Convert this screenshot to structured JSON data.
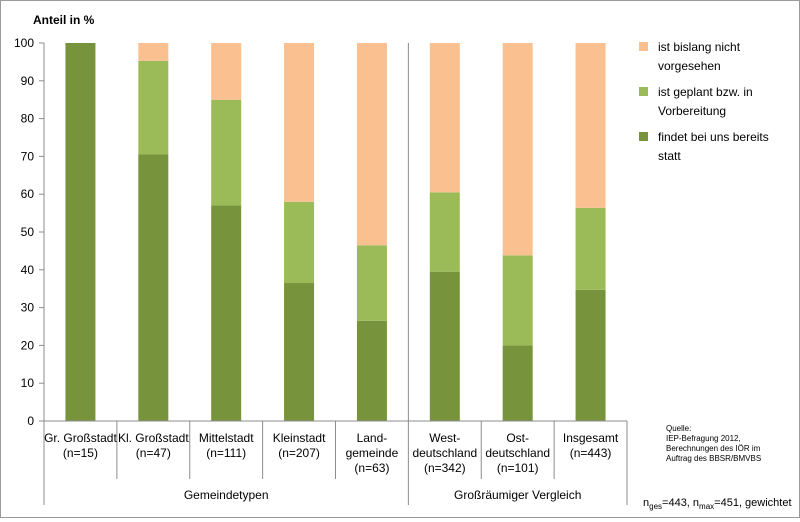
{
  "chart_data": {
    "type": "bar",
    "stacked": true,
    "ylabel": "Anteil in %",
    "ylim": [
      0,
      100
    ],
    "yticks": [
      0,
      10,
      20,
      30,
      40,
      50,
      60,
      70,
      80,
      90,
      100
    ],
    "categories": [
      [
        "Gr. Großstadt",
        "(n=15)"
      ],
      [
        "Kl. Großstadt",
        "(n=47)"
      ],
      [
        "Mittelstadt",
        "(n=111)"
      ],
      [
        "Kleinstadt",
        "(n=207)"
      ],
      [
        "Land-",
        "gemeinde",
        "(n=63)"
      ],
      [
        "West-",
        "deutschland",
        "(n=342)"
      ],
      [
        "Ost-",
        "deutschland",
        "(n=101)"
      ],
      [
        "Insgesamt",
        "(n=443)"
      ]
    ],
    "groups": [
      {
        "label": "Gemeindetypen",
        "from": 0,
        "to": 4
      },
      {
        "label": "Großräumiger Vergleich",
        "from": 5,
        "to": 7
      }
    ],
    "series": [
      {
        "name": "findet bei uns bereits statt",
        "color": "#77933C",
        "values": [
          100,
          70.5,
          57,
          36.5,
          26.5,
          39.5,
          20,
          34.7
        ]
      },
      {
        "name": "ist geplant bzw. in Vorbereitung",
        "color": "#9BBB59",
        "values": [
          0,
          24.8,
          28,
          21.5,
          20,
          21,
          23.8,
          21.7
        ]
      },
      {
        "name": "ist bislang nicht vorgesehen",
        "color": "#FAC090",
        "values": [
          0,
          4.7,
          15,
          42,
          53.5,
          39.5,
          56.2,
          43.6
        ]
      }
    ],
    "legend": [
      {
        "lines": [
          "ist bislang nicht",
          "vorgesehen"
        ],
        "color": "#FAC090"
      },
      {
        "lines": [
          "ist geplant bzw. in",
          "Vorbereitung"
        ],
        "color": "#9BBB59"
      },
      {
        "lines": [
          "findet bei uns bereits",
          "statt"
        ],
        "color": "#77933C"
      }
    ],
    "legend_position": "right",
    "grid": false
  },
  "source": {
    "lines": [
      "Quelle:",
      "IEP-Befragung 2012,",
      "Berechnungen des IÖR im",
      "Auftrag des BBSR/BMVBS"
    ]
  },
  "note": {
    "n1": "n",
    "n1_sub": "ges",
    "n1_val": "=443, ",
    "n2": "n",
    "n2_sub": "max",
    "n2_val": "=451, gewichtet"
  }
}
